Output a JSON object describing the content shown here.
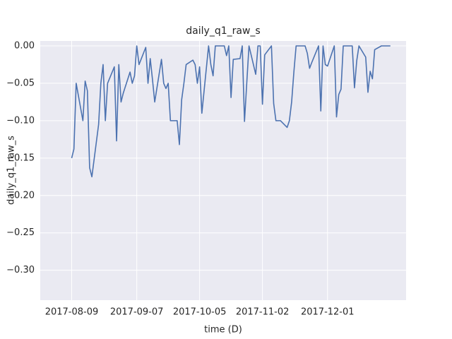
{
  "chart_data": {
    "type": "line",
    "title": "daily_q1_raw_s",
    "x_label": "time (D)",
    "y_label": "daily_q1_raw_s",
    "x": [
      "2017-08-09",
      "2017-08-10",
      "2017-08-11",
      "2017-08-14",
      "2017-08-15",
      "2017-08-16",
      "2017-08-17",
      "2017-08-18",
      "2017-08-21",
      "2017-08-22",
      "2017-08-23",
      "2017-08-24",
      "2017-08-25",
      "2017-08-28",
      "2017-08-29",
      "2017-08-30",
      "2017-08-31",
      "2017-09-01",
      "2017-09-04",
      "2017-09-05",
      "2017-09-06",
      "2017-09-07",
      "2017-09-08",
      "2017-09-11",
      "2017-09-12",
      "2017-09-13",
      "2017-09-14",
      "2017-09-15",
      "2017-09-18",
      "2017-09-19",
      "2017-09-20",
      "2017-09-21",
      "2017-09-22",
      "2017-09-25",
      "2017-09-26",
      "2017-09-27",
      "2017-09-28",
      "2017-09-29",
      "2017-10-02",
      "2017-10-03",
      "2017-10-04",
      "2017-10-05",
      "2017-10-06",
      "2017-10-09",
      "2017-10-10",
      "2017-10-11",
      "2017-10-12",
      "2017-10-13",
      "2017-10-16",
      "2017-10-17",
      "2017-10-18",
      "2017-10-19",
      "2017-10-20",
      "2017-10-23",
      "2017-10-24",
      "2017-10-25",
      "2017-10-26",
      "2017-10-27",
      "2017-10-30",
      "2017-10-31",
      "2017-11-01",
      "2017-11-02",
      "2017-11-03",
      "2017-11-06",
      "2017-11-07",
      "2017-11-08",
      "2017-11-09",
      "2017-11-10",
      "2017-11-13",
      "2017-11-14",
      "2017-11-15",
      "2017-11-16",
      "2017-11-17",
      "2017-11-20",
      "2017-11-21",
      "2017-11-22",
      "2017-11-23",
      "2017-11-24",
      "2017-11-27",
      "2017-11-28",
      "2017-11-29",
      "2017-11-30",
      "2017-12-01",
      "2017-12-04",
      "2017-12-05",
      "2017-12-06",
      "2017-12-07",
      "2017-12-08",
      "2017-12-11",
      "2017-12-12",
      "2017-12-13",
      "2017-12-14",
      "2017-12-15",
      "2017-12-18",
      "2017-12-19",
      "2017-12-20",
      "2017-12-21",
      "2017-12-22",
      "2017-12-25",
      "2017-12-26",
      "2017-12-27",
      "2017-12-28",
      "2017-12-29"
    ],
    "series": [
      {
        "name": "daily_q1_raw_s",
        "color": "#4c72b0",
        "values": [
          -0.15,
          -0.138,
          -0.05,
          -0.1,
          -0.047,
          -0.06,
          -0.163,
          -0.175,
          -0.105,
          -0.05,
          -0.025,
          -0.1,
          -0.05,
          -0.028,
          -0.127,
          -0.025,
          -0.075,
          -0.063,
          -0.035,
          -0.05,
          -0.04,
          0,
          -0.025,
          -0.002,
          -0.05,
          -0.017,
          -0.045,
          -0.075,
          -0.018,
          -0.05,
          -0.057,
          -0.05,
          -0.1,
          -0.1,
          -0.132,
          -0.072,
          -0.05,
          -0.025,
          -0.019,
          -0.025,
          -0.05,
          -0.028,
          -0.09,
          0,
          -0.025,
          -0.04,
          0,
          0,
          0,
          -0.013,
          0,
          -0.069,
          -0.018,
          -0.017,
          0,
          -0.101,
          -0.05,
          0,
          -0.038,
          0,
          0,
          -0.078,
          -0.012,
          0,
          -0.077,
          -0.1,
          -0.1,
          -0.1,
          -0.109,
          -0.1,
          -0.075,
          -0.035,
          0,
          0,
          0,
          -0.01,
          -0.03,
          -0.022,
          0,
          -0.087,
          0,
          -0.025,
          -0.027,
          0,
          -0.095,
          -0.065,
          -0.058,
          0,
          0,
          0,
          -0.056,
          -0.02,
          0,
          -0.015,
          -0.062,
          -0.034,
          -0.044,
          -0.005,
          0,
          0,
          0,
          0,
          0
        ]
      }
    ],
    "xlim": [
      "2017-07-26",
      "2018-01-05"
    ],
    "xticks": [
      "2017-08-09",
      "2017-09-07",
      "2017-10-05",
      "2017-11-02",
      "2017-12-01"
    ],
    "ylim": [
      -0.34,
      0.0066
    ],
    "yticks": [
      {
        "value": 0,
        "label": "0.00"
      },
      {
        "value": -0.05,
        "label": "−0.05"
      },
      {
        "value": -0.1,
        "label": "−0.10"
      },
      {
        "value": -0.15,
        "label": "−0.15"
      },
      {
        "value": -0.2,
        "label": "−0.20"
      },
      {
        "value": -0.25,
        "label": "−0.25"
      },
      {
        "value": -0.3,
        "label": "−0.30"
      }
    ],
    "grid": true
  }
}
